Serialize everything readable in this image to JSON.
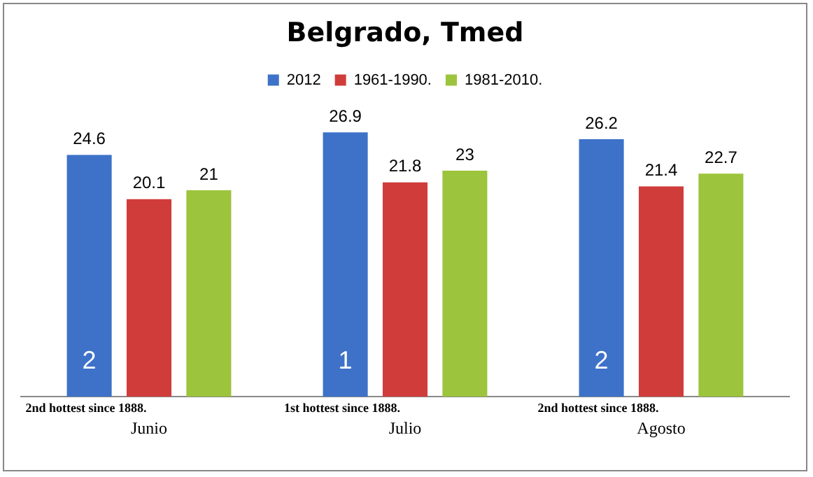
{
  "chart_data": {
    "type": "bar",
    "title": "Belgrado, Tmed",
    "categories": [
      "Junio",
      "Julio",
      "Agosto"
    ],
    "series": [
      {
        "name": "2012",
        "color": "#3d72c8",
        "values": [
          24.6,
          26.9,
          26.2
        ]
      },
      {
        "name": "1961-1990.",
        "color": "#d03c3a",
        "values": [
          20.1,
          21.8,
          21.4
        ]
      },
      {
        "name": "1981-2010.",
        "color": "#9cc43c",
        "values": [
          21,
          23,
          22.7
        ]
      }
    ],
    "data_labels": true,
    "grid": false,
    "legend": "top",
    "tick_labels": "x",
    "annotations": [
      "2",
      "1",
      "2",
      "2nd hottest since 1888.",
      "1st hottest since 1888.",
      "2nd hottest since 1888."
    ]
  }
}
